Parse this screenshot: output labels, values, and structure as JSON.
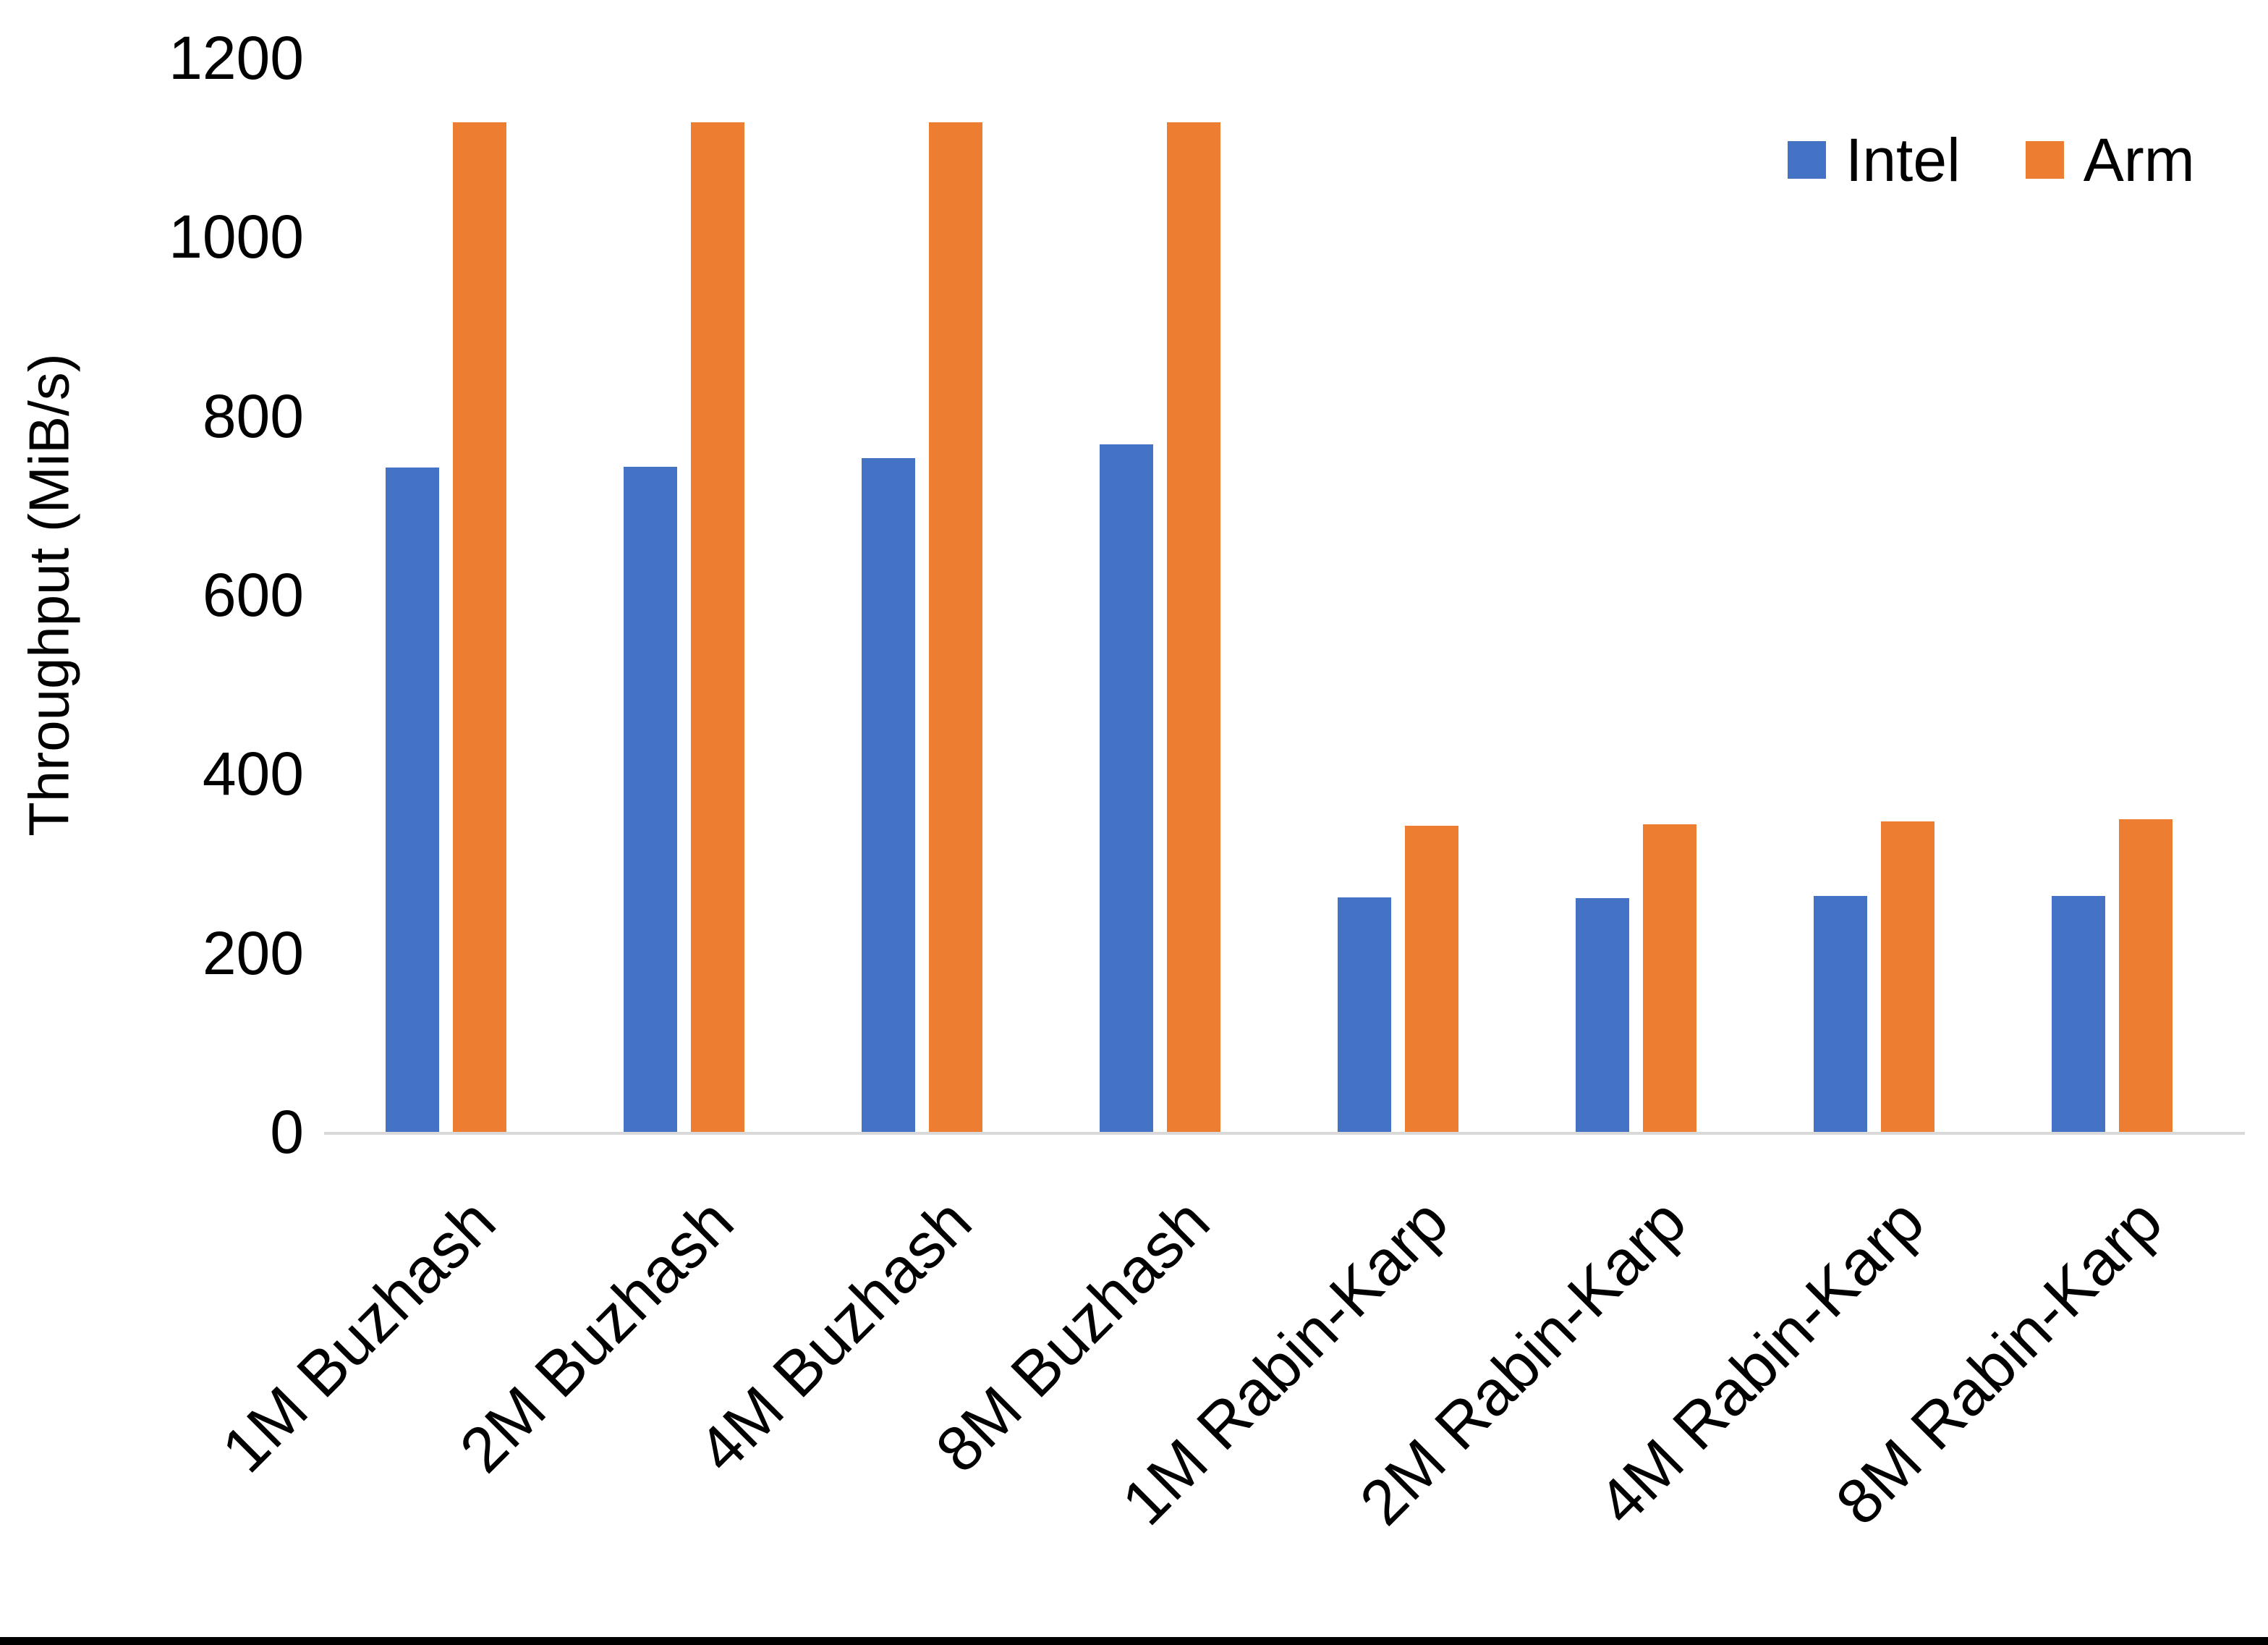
{
  "chart_data": {
    "type": "bar",
    "title": "",
    "xlabel": "",
    "ylabel": "Throughput (MiB/s)",
    "ylim": [
      0,
      1200
    ],
    "yticks": [
      0,
      200,
      400,
      600,
      800,
      1000,
      1200
    ],
    "grid": false,
    "legend_position": "top-right",
    "categories": [
      "1M Buzhash",
      "2M Buzhash",
      "4M Buzhash",
      "8M Buzhash",
      "1M Rabin-Karp",
      "2M Rabin-Karp",
      "4M Rabin-Karp",
      "8M Rabin-Karp"
    ],
    "series": [
      {
        "name": "Intel",
        "color": "#4472C4",
        "values": [
          742,
          743,
          753,
          768,
          262,
          261,
          264,
          264
        ]
      },
      {
        "name": "Arm",
        "color": "#ED7D31",
        "values": [
          1128,
          1128,
          1128,
          1128,
          342,
          344,
          347,
          349
        ]
      }
    ]
  },
  "colors": {
    "background": "#FFFFFF",
    "axis_line": "#D9D9D9",
    "text": "#000000",
    "bottom_border": "#000000"
  }
}
